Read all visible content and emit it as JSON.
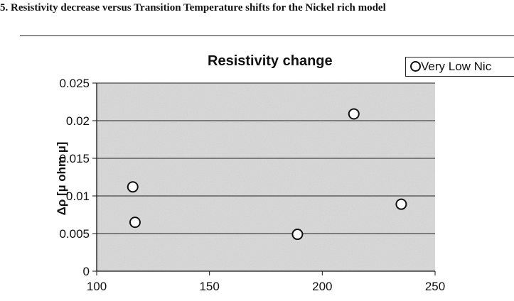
{
  "caption": "5. Resistivity decrease versus Transition Temperature shifts for the Nickel rich model",
  "chart_data": {
    "type": "scatter",
    "title": "Resistivity change",
    "xlabel": "",
    "ylabel": "Δρ [µ ohm µ]",
    "xlim": [
      100,
      250
    ],
    "ylim": [
      0,
      0.025
    ],
    "x_ticks": [
      "100",
      "150",
      "200",
      "250"
    ],
    "y_ticks": [
      "0",
      "0.005",
      "0.01",
      "0.015",
      "0.02",
      "0.025"
    ],
    "grid": "horizontal",
    "legend_position": "top-right",
    "series": [
      {
        "name": "Very Low Nic",
        "points": [
          {
            "x": 116,
            "y": 0.0112
          },
          {
            "x": 117,
            "y": 0.0065
          },
          {
            "x": 189,
            "y": 0.0049
          },
          {
            "x": 214,
            "y": 0.0209
          },
          {
            "x": 235,
            "y": 0.0089
          }
        ]
      }
    ],
    "colors": {
      "plot_background": "#d9d9d9",
      "marker_edge": "#111111",
      "marker_fill": "#ffffff"
    }
  }
}
